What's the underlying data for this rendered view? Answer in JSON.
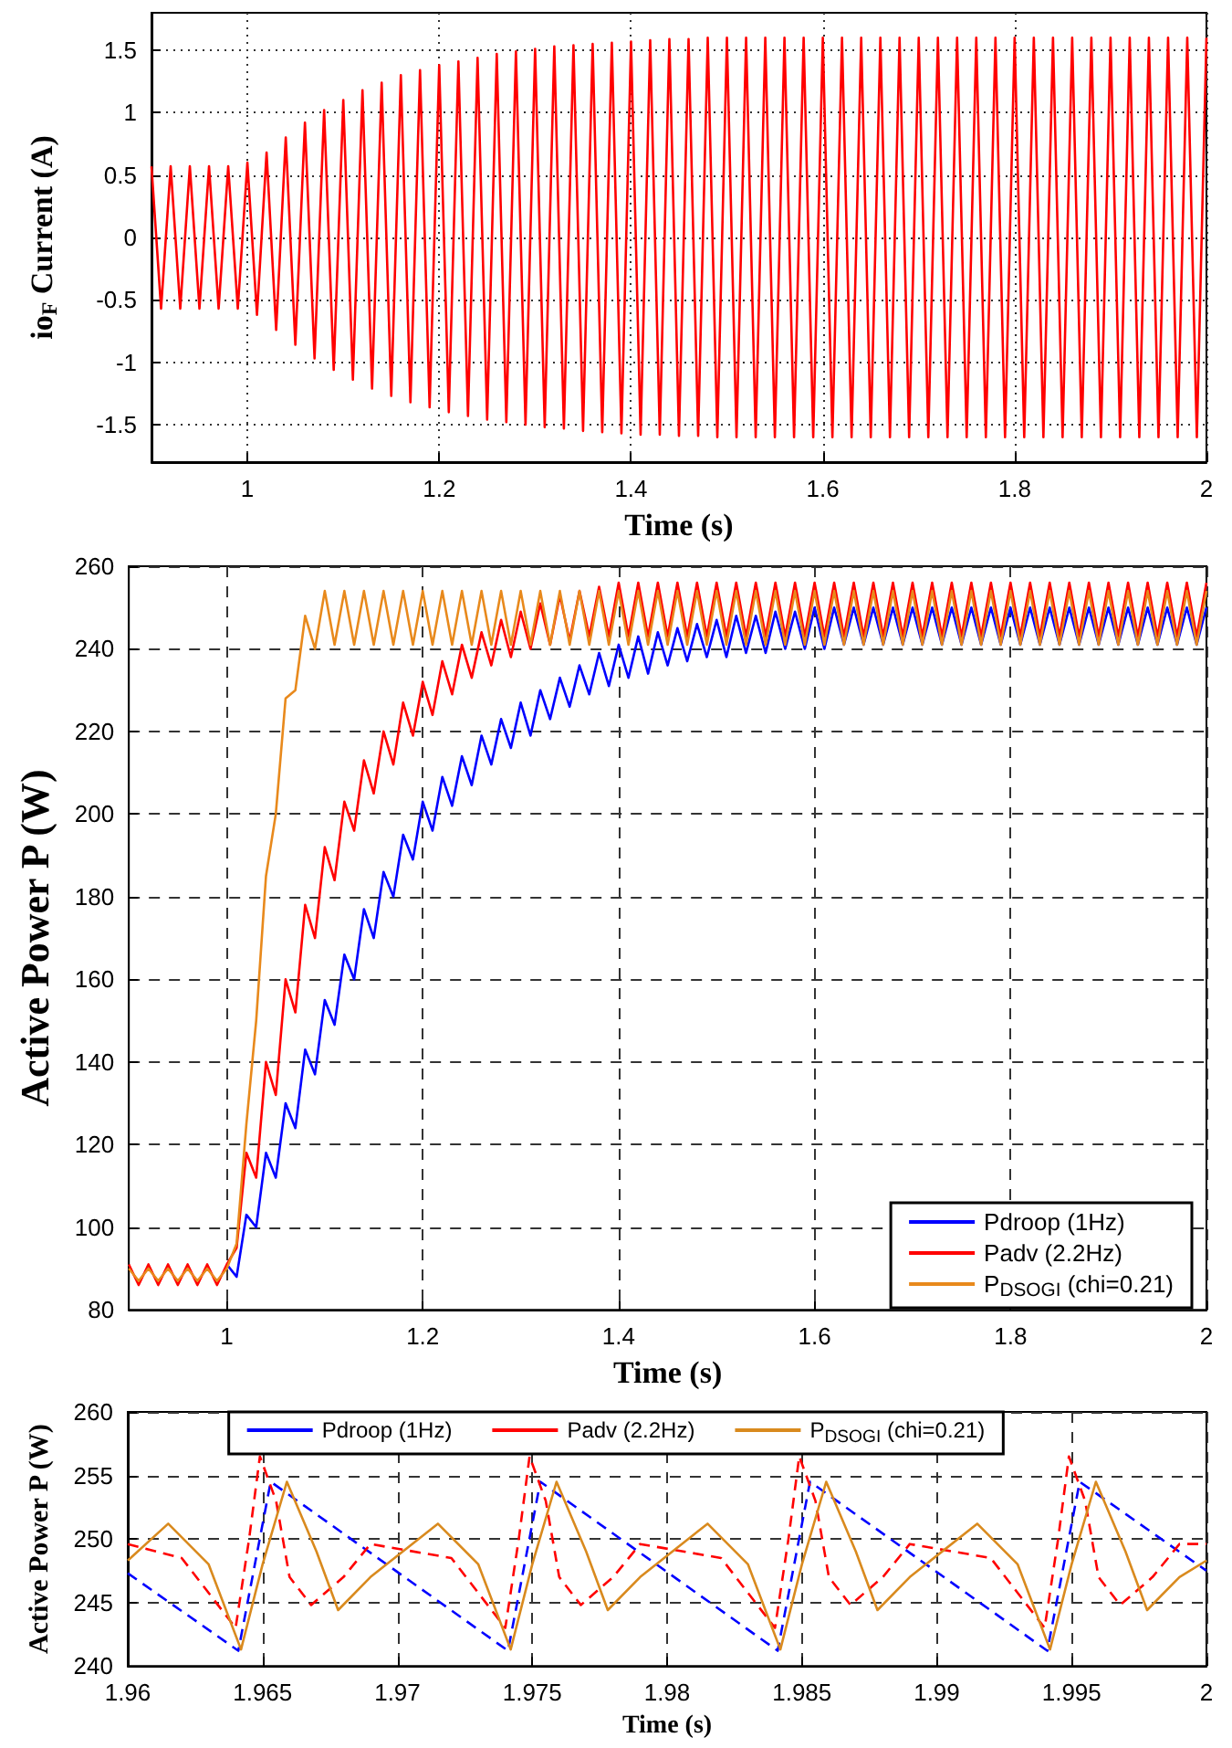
{
  "chart_data": [
    {
      "type": "line",
      "xlabel": "Time (s)",
      "ylabel": "io$_{F}$ Current (A)",
      "xlim": [
        0.9,
        2
      ],
      "xticks": [
        1,
        1.2,
        1.4,
        1.6,
        1.8,
        2
      ],
      "ylim": [
        -1.8,
        1.8
      ],
      "yticks": [
        -1.5,
        -1,
        -0.5,
        0,
        0.5,
        1,
        1.5
      ],
      "grid": true,
      "legend": false,
      "marker": "none",
      "x": [
        0.9,
        0.91,
        0.92,
        0.93,
        0.94,
        0.95,
        0.96,
        0.97,
        0.98,
        0.99,
        1,
        1.01,
        1.02,
        1.03,
        1.04,
        1.05,
        1.06,
        1.07,
        1.08,
        1.09,
        1.1,
        1.11,
        1.12,
        1.13,
        1.14,
        1.15,
        1.16,
        1.17,
        1.18,
        1.19,
        1.2,
        1.21,
        1.22,
        1.23,
        1.24,
        1.25,
        1.26,
        1.27,
        1.28,
        1.29,
        1.3,
        1.31,
        1.32,
        1.33,
        1.34,
        1.35,
        1.36,
        1.37,
        1.38,
        1.39,
        1.4,
        1.41,
        1.42,
        1.43,
        1.44,
        1.45,
        1.46,
        1.47,
        1.48,
        1.49,
        1.5,
        1.51,
        1.52,
        1.53,
        1.54,
        1.55,
        1.56,
        1.57,
        1.58,
        1.59,
        1.6,
        1.61,
        1.62,
        1.63,
        1.64,
        1.65,
        1.66,
        1.67,
        1.68,
        1.69,
        1.7,
        1.71,
        1.72,
        1.73,
        1.74,
        1.75,
        1.76,
        1.77,
        1.78,
        1.79,
        1.8,
        1.81,
        1.82,
        1.83,
        1.84,
        1.85,
        1.86,
        1.87,
        1.88,
        1.89,
        1.9,
        1.91,
        1.92,
        1.93,
        1.94,
        1.95,
        1.96,
        1.97,
        1.98,
        1.99,
        2
      ],
      "series": [
        {
          "color": "#ff0000",
          "line_style": "solid",
          "values": [
            0.57,
            -0.57,
            0.57,
            -0.57,
            0.57,
            -0.57,
            0.57,
            -0.57,
            0.57,
            -0.57,
            0.6,
            -0.62,
            0.68,
            -0.74,
            0.8,
            -0.86,
            0.92,
            -0.97,
            1.02,
            -1.06,
            1.1,
            -1.14,
            1.18,
            -1.21,
            1.24,
            -1.27,
            1.3,
            -1.32,
            1.34,
            -1.36,
            1.38,
            -1.4,
            1.41,
            -1.43,
            1.44,
            -1.46,
            1.47,
            -1.48,
            1.49,
            -1.5,
            1.51,
            -1.52,
            1.53,
            -1.53,
            1.54,
            -1.55,
            1.55,
            -1.56,
            1.56,
            -1.57,
            1.57,
            -1.58,
            1.58,
            -1.58,
            1.59,
            -1.59,
            1.59,
            -1.59,
            1.6,
            -1.6,
            1.6,
            -1.6,
            1.6,
            -1.6,
            1.6,
            -1.6,
            1.6,
            -1.6,
            1.6,
            -1.6,
            1.6,
            -1.6,
            1.6,
            -1.6,
            1.6,
            -1.6,
            1.6,
            -1.6,
            1.6,
            -1.6,
            1.6,
            -1.6,
            1.6,
            -1.6,
            1.6,
            -1.6,
            1.6,
            -1.6,
            1.6,
            -1.6,
            1.6,
            -1.6,
            1.6,
            -1.6,
            1.6,
            -1.6,
            1.6,
            -1.6,
            1.6,
            -1.6,
            1.6,
            -1.6,
            1.6,
            -1.6,
            1.6,
            -1.6,
            1.6,
            -1.6,
            1.6,
            -1.6,
            1.6
          ]
        }
      ]
    },
    {
      "type": "line",
      "xlabel": "Time (s)",
      "ylabel": "Active Power P (W)",
      "xlim": [
        0.9,
        2
      ],
      "xticks": [
        1,
        1.2,
        1.4,
        1.6,
        1.8,
        2
      ],
      "ylim": [
        80,
        260
      ],
      "yticks": [
        80,
        100,
        120,
        140,
        160,
        180,
        200,
        220,
        240,
        260
      ],
      "grid": true,
      "legend": "bottom right",
      "marker": "none",
      "x": [
        0.9,
        0.91,
        0.92,
        0.93,
        0.94,
        0.95,
        0.96,
        0.97,
        0.98,
        0.99,
        1,
        1.01,
        1.02,
        1.03,
        1.04,
        1.05,
        1.06,
        1.07,
        1.08,
        1.09,
        1.1,
        1.11,
        1.12,
        1.13,
        1.14,
        1.15,
        1.16,
        1.17,
        1.18,
        1.19,
        1.2,
        1.21,
        1.22,
        1.23,
        1.24,
        1.25,
        1.26,
        1.27,
        1.28,
        1.29,
        1.3,
        1.31,
        1.32,
        1.33,
        1.34,
        1.35,
        1.36,
        1.37,
        1.38,
        1.39,
        1.4,
        1.41,
        1.42,
        1.43,
        1.44,
        1.45,
        1.46,
        1.47,
        1.48,
        1.49,
        1.5,
        1.51,
        1.52,
        1.53,
        1.54,
        1.55,
        1.56,
        1.57,
        1.58,
        1.59,
        1.6,
        1.61,
        1.62,
        1.63,
        1.64,
        1.65,
        1.66,
        1.67,
        1.68,
        1.69,
        1.7,
        1.71,
        1.72,
        1.73,
        1.74,
        1.75,
        1.76,
        1.77,
        1.78,
        1.79,
        1.8,
        1.81,
        1.82,
        1.83,
        1.84,
        1.85,
        1.86,
        1.87,
        1.88,
        1.89,
        1.9,
        1.91,
        1.92,
        1.93,
        1.94,
        1.95,
        1.96,
        1.97,
        1.98,
        1.99,
        2
      ],
      "series": [
        {
          "name": "Pdroop (1Hz)",
          "color": "#0000ff",
          "line_style": "solid",
          "values": [
            null,
            null,
            null,
            null,
            null,
            null,
            null,
            null,
            null,
            null,
            91,
            88,
            103,
            100,
            118,
            112,
            130,
            124,
            143,
            137,
            155,
            149,
            166,
            160,
            177,
            170,
            186,
            180,
            195,
            189,
            203,
            196,
            209,
            202,
            214,
            207,
            219,
            212,
            223,
            216,
            227,
            219,
            230,
            223,
            233,
            226,
            236,
            229,
            239,
            231,
            241,
            233,
            243,
            234,
            244,
            236,
            245,
            237,
            246,
            238,
            247,
            238,
            248,
            239,
            248,
            239,
            249,
            240,
            249,
            240,
            250,
            240,
            250,
            241,
            250,
            241,
            250,
            241,
            250,
            241,
            250,
            241,
            250,
            241,
            250,
            241,
            250,
            241,
            250,
            241,
            250,
            241,
            250,
            241,
            250,
            241,
            250,
            241,
            250,
            241,
            250,
            241,
            250,
            241,
            250,
            241,
            250,
            241,
            250,
            241,
            250
          ]
        },
        {
          "name": "Padv (2.2Hz)",
          "color": "#ff0000",
          "line_style": "solid",
          "values": [
            91,
            86,
            91,
            86,
            91,
            86,
            91,
            86,
            91,
            86,
            91,
            95,
            118,
            112,
            140,
            132,
            160,
            152,
            178,
            170,
            192,
            184,
            203,
            196,
            213,
            205,
            220,
            212,
            227,
            219,
            232,
            224,
            237,
            229,
            241,
            233,
            244,
            236,
            247,
            238,
            249,
            240,
            251,
            241,
            253,
            242,
            254,
            243,
            255,
            243,
            256,
            243,
            256,
            243,
            256,
            243,
            256,
            243,
            256,
            243,
            256,
            243,
            256,
            243,
            256,
            243,
            256,
            243,
            256,
            243,
            256,
            243,
            256,
            243,
            256,
            243,
            256,
            243,
            256,
            243,
            256,
            243,
            256,
            243,
            256,
            243,
            256,
            243,
            256,
            243,
            256,
            243,
            256,
            243,
            256,
            243,
            256,
            243,
            256,
            243,
            256,
            243,
            256,
            243,
            256,
            243,
            256,
            243,
            256,
            243,
            256
          ]
        },
        {
          "name": "P$_{DSOGI}$ (chi=0.21)",
          "color": "#e8891c",
          "line_style": "solid",
          "values": [
            90,
            87,
            90,
            87,
            90,
            87,
            90,
            87,
            90,
            87,
            90,
            96,
            125,
            150,
            185,
            200,
            228,
            230,
            248,
            240,
            254,
            241,
            254,
            241,
            254,
            241,
            254,
            241,
            254,
            241,
            254,
            241,
            254,
            241,
            254,
            241,
            254,
            241,
            254,
            241,
            254,
            241,
            254,
            241,
            254,
            241,
            254,
            241,
            254,
            241,
            254,
            241,
            254,
            241,
            254,
            241,
            254,
            241,
            254,
            241,
            254,
            241,
            254,
            241,
            254,
            241,
            254,
            241,
            254,
            241,
            254,
            241,
            254,
            241,
            254,
            241,
            254,
            241,
            254,
            241,
            254,
            241,
            254,
            241,
            254,
            241,
            254,
            241,
            254,
            241,
            254,
            241,
            254,
            241,
            254,
            241,
            254,
            241,
            254,
            241,
            254,
            241,
            254,
            241,
            254,
            241,
            254,
            241,
            254,
            241,
            254
          ]
        }
      ]
    },
    {
      "type": "line",
      "xlabel": "Time (s)",
      "ylabel": "Active Power P (W)",
      "xlim": [
        1.96,
        2
      ],
      "xticks": [
        1.96,
        1.965,
        1.97,
        1.975,
        1.98,
        1.985,
        1.99,
        1.995,
        2
      ],
      "ylim": [
        240,
        260
      ],
      "yticks": [
        240,
        245,
        250,
        255,
        260
      ],
      "grid": true,
      "legend": "top",
      "marker": "none",
      "series": [
        {
          "name": "Pdroop (1Hz)",
          "color": "#0000ff",
          "line_style": "dashed",
          "x": [
            1.96,
            1.9641,
            1.9653,
            1.9741,
            1.9753,
            1.9841,
            1.9853,
            1.9941,
            1.9953,
            2
          ],
          "values": [
            247.3,
            241.2,
            254.5,
            241.2,
            254.5,
            241.2,
            254.5,
            241.2,
            254.5,
            247.5
          ]
        },
        {
          "name": "Padv (2.2Hz)",
          "color": "#ff0000",
          "line_style": "dashed",
          "x": [
            1.96,
            1.962,
            1.964,
            1.9645,
            1.9649,
            1.9655,
            1.966,
            1.9668,
            1.968,
            1.969,
            1.972,
            1.974,
            1.9745,
            1.9749,
            1.9755,
            1.976,
            1.9768,
            1.978,
            1.979,
            1.982,
            1.984,
            1.9845,
            1.9849,
            1.9855,
            1.986,
            1.9868,
            1.988,
            1.989,
            1.992,
            1.994,
            1.9945,
            1.9949,
            1.9955,
            1.996,
            1.9968,
            1.998,
            1.999,
            2
          ],
          "values": [
            249.6,
            248.5,
            243,
            250,
            256.5,
            253,
            247,
            244.8,
            247,
            249.6,
            248.5,
            243,
            250,
            256.5,
            253,
            247,
            244.8,
            247,
            249.6,
            248.5,
            243,
            250,
            256.5,
            253,
            247,
            244.8,
            247,
            249.6,
            248.5,
            243,
            250,
            256.5,
            253,
            247,
            244.8,
            247,
            249.6,
            249.6
          ]
        },
        {
          "name": "P$_{DSOGI}$ (chi=0.21)",
          "color": "#d98a1e",
          "line_style": "solid",
          "x": [
            1.96,
            1.9615,
            1.963,
            1.9642,
            1.965,
            1.9659,
            1.967,
            1.9678,
            1.969,
            1.9715,
            1.973,
            1.9742,
            1.975,
            1.9759,
            1.977,
            1.9778,
            1.979,
            1.9815,
            1.983,
            1.9842,
            1.985,
            1.9859,
            1.987,
            1.9878,
            1.989,
            1.9915,
            1.993,
            1.9942,
            1.995,
            1.9959,
            1.997,
            1.9978,
            1.999,
            2
          ],
          "values": [
            248.3,
            251.2,
            248,
            241.3,
            248,
            254.5,
            249,
            244.4,
            247,
            251.2,
            248,
            241.3,
            248,
            254.5,
            249,
            244.4,
            247,
            251.2,
            248,
            241.3,
            248,
            254.5,
            249,
            244.4,
            247,
            251.2,
            248,
            241.3,
            248,
            254.5,
            249,
            244.4,
            247,
            248.3
          ]
        }
      ]
    }
  ]
}
